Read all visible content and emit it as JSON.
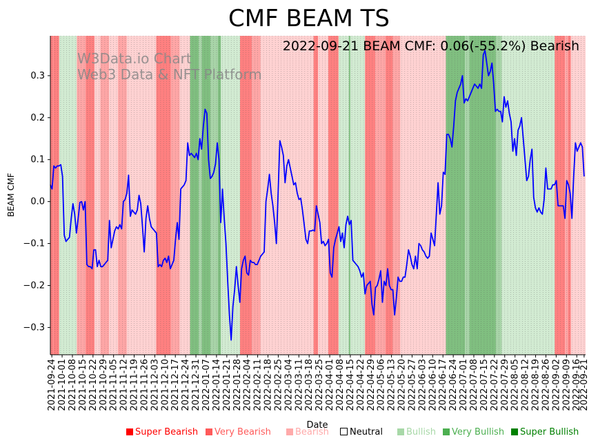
{
  "chart_data": {
    "type": "line",
    "title": "CMF BEAM TS",
    "annotation": "2022-09-21 BEAM CMF: 0.06(-55.2%) Bearish",
    "watermark": [
      "W3Data.io Chart",
      "Web3 Data & NFT Platform"
    ],
    "xlabel": "Date",
    "ylabel": "BEAM CMF",
    "ylim": [
      -0.365,
      0.395
    ],
    "yticks": [
      0.3,
      0.2,
      0.1,
      0.0,
      -0.1,
      -0.2,
      -0.3
    ],
    "ytick_labels": [
      "0.3",
      "0.2",
      "0.1",
      "0.0",
      "−0.1",
      "−0.2",
      "−0.3"
    ],
    "x_start": "2021-09-23",
    "x_end": "2022-09-22",
    "xtick_labels": [
      "2021-09-24",
      "2021-10-01",
      "2021-10-08",
      "2021-10-15",
      "2021-10-22",
      "2021-10-29",
      "2021-11-05",
      "2021-11-12",
      "2021-11-19",
      "2021-11-26",
      "2021-12-03",
      "2021-12-10",
      "2021-12-17",
      "2021-12-24",
      "2021-12-31",
      "2022-01-07",
      "2022-01-14",
      "2022-01-21",
      "2022-01-28",
      "2022-02-04",
      "2022-02-11",
      "2022-02-18",
      "2022-02-25",
      "2022-03-04",
      "2022-03-11",
      "2022-03-18",
      "2022-03-25",
      "2022-04-01",
      "2022-04-08",
      "2022-04-15",
      "2022-04-22",
      "2022-04-29",
      "2022-05-06",
      "2022-05-13",
      "2022-05-20",
      "2022-05-27",
      "2022-06-03",
      "2022-06-10",
      "2022-06-17",
      "2022-06-24",
      "2022-07-01",
      "2022-07-08",
      "2022-07-15",
      "2022-07-22",
      "2022-07-29",
      "2022-08-05",
      "2022-08-12",
      "2022-08-19",
      "2022-08-26",
      "2022-09-02",
      "2022-09-09",
      "2022-09-16",
      "2022-09-21"
    ],
    "series": [
      {
        "name": "BEAM CMF",
        "color": "#0000ff",
        "values": [
          0.04,
          0.03,
          0.085,
          0.08,
          0.085,
          0.085,
          0.088,
          0.06,
          -0.08,
          -0.095,
          -0.09,
          -0.085,
          -0.04,
          -0.005,
          -0.03,
          -0.075,
          -0.04,
          -0.002,
          0.0,
          -0.02,
          0.0,
          -0.15,
          -0.155,
          -0.155,
          -0.16,
          -0.115,
          -0.115,
          -0.155,
          -0.14,
          -0.155,
          -0.155,
          -0.15,
          -0.145,
          -0.14,
          -0.045,
          -0.11,
          -0.09,
          -0.07,
          -0.06,
          -0.065,
          -0.055,
          -0.065,
          0.0,
          0.005,
          0.02,
          0.063,
          -0.035,
          -0.02,
          -0.025,
          -0.03,
          -0.02,
          0.015,
          -0.005,
          -0.06,
          -0.12,
          -0.04,
          -0.01,
          -0.04,
          -0.06,
          -0.065,
          -0.07,
          -0.075,
          -0.155,
          -0.15,
          -0.155,
          -0.14,
          -0.135,
          -0.145,
          -0.13,
          -0.16,
          -0.15,
          -0.14,
          -0.09,
          -0.05,
          -0.09,
          0.03,
          0.035,
          0.04,
          0.05,
          0.14,
          0.11,
          0.115,
          0.11,
          0.105,
          0.115,
          0.1,
          0.15,
          0.125,
          0.18,
          0.22,
          0.21,
          0.1,
          0.055,
          0.06,
          0.07,
          0.09,
          0.14,
          0.1,
          -0.05,
          0.03,
          -0.04,
          -0.1,
          -0.19,
          -0.27,
          -0.33,
          -0.25,
          -0.21,
          -0.155,
          -0.2,
          -0.24,
          -0.16,
          -0.14,
          -0.13,
          -0.17,
          -0.175,
          -0.14,
          -0.145,
          -0.145,
          -0.15,
          -0.15,
          -0.14,
          -0.13,
          -0.125,
          -0.12,
          0.0,
          0.03,
          0.065,
          0.02,
          -0.01,
          -0.05,
          -0.1,
          0.02,
          0.145,
          0.13,
          0.11,
          0.045,
          0.085,
          0.1,
          0.08,
          0.06,
          0.04,
          0.045,
          0.02,
          0.005,
          0.008,
          -0.02,
          -0.055,
          -0.09,
          -0.1,
          -0.07,
          -0.07,
          -0.068,
          -0.07,
          -0.01,
          -0.03,
          -0.05,
          -0.1,
          -0.095,
          -0.105,
          -0.1,
          -0.09,
          -0.17,
          -0.18,
          -0.11,
          -0.09,
          -0.075,
          -0.06,
          -0.095,
          -0.075,
          -0.11,
          -0.055,
          -0.035,
          -0.055,
          -0.045,
          -0.14,
          -0.145,
          -0.15,
          -0.155,
          -0.165,
          -0.18,
          -0.17,
          -0.22,
          -0.2,
          -0.195,
          -0.19,
          -0.245,
          -0.27,
          -0.205,
          -0.2,
          -0.185,
          -0.165,
          -0.24,
          -0.19,
          -0.2,
          -0.16,
          -0.2,
          -0.21,
          -0.21,
          -0.27,
          -0.23,
          -0.18,
          -0.19,
          -0.19,
          -0.18,
          -0.18,
          -0.15,
          -0.115,
          -0.13,
          -0.15,
          -0.16,
          -0.13,
          -0.16,
          -0.1,
          -0.105,
          -0.115,
          -0.12,
          -0.13,
          -0.135,
          -0.13,
          -0.075,
          -0.09,
          -0.105,
          -0.03,
          0.045,
          -0.03,
          -0.01,
          0.07,
          0.065,
          0.16,
          0.16,
          0.15,
          0.13,
          0.18,
          0.24,
          0.26,
          0.27,
          0.28,
          0.3,
          0.235,
          0.245,
          0.24,
          0.25,
          0.26,
          0.27,
          0.28,
          0.275,
          0.27,
          0.28,
          0.27,
          0.35,
          0.36,
          0.33,
          0.3,
          0.31,
          0.33,
          0.28,
          0.215,
          0.22,
          0.215,
          0.215,
          0.19,
          0.25,
          0.225,
          0.24,
          0.21,
          0.19,
          0.12,
          0.15,
          0.11,
          0.17,
          0.18,
          0.2,
          0.15,
          0.1,
          0.05,
          0.06,
          0.1,
          0.125,
          0.01,
          -0.015,
          -0.025,
          -0.015,
          -0.025,
          -0.03,
          0.005,
          0.08,
          0.03,
          0.03,
          0.03,
          0.04,
          0.04,
          0.05,
          -0.01,
          -0.01,
          -0.01,
          -0.01,
          -0.04,
          0.05,
          0.04,
          0.02,
          -0.04,
          0.06,
          0.14,
          0.12,
          0.13,
          0.14,
          0.13,
          0.06
        ]
      }
    ],
    "regimes_colors": {
      "super_bearish": "#ff8080",
      "very_bearish": "#ffa6a6",
      "bearish": "#ffd2d2",
      "neutral": "#ffffff",
      "bullish": "#d2ebd2",
      "very_bullish": "#a8d4a8",
      "super_bullish": "#80bf80"
    },
    "regimes": [
      {
        "start": "2021-09-23",
        "end": "2021-09-25",
        "level": "super_bearish"
      },
      {
        "start": "2021-09-25",
        "end": "2021-09-29",
        "level": "super_bearish"
      },
      {
        "start": "2021-09-29",
        "end": "2021-10-11",
        "level": "bullish"
      },
      {
        "start": "2021-10-11",
        "end": "2021-10-17",
        "level": "very_bearish"
      },
      {
        "start": "2021-10-17",
        "end": "2021-10-23",
        "level": "super_bearish"
      },
      {
        "start": "2021-10-23",
        "end": "2021-10-27",
        "level": "bearish"
      },
      {
        "start": "2021-10-27",
        "end": "2021-11-02",
        "level": "very_bearish"
      },
      {
        "start": "2021-11-02",
        "end": "2021-11-08",
        "level": "bearish"
      },
      {
        "start": "2021-11-08",
        "end": "2021-11-14",
        "level": "very_bearish"
      },
      {
        "start": "2021-11-14",
        "end": "2021-12-04",
        "level": "bearish"
      },
      {
        "start": "2021-12-04",
        "end": "2021-12-14",
        "level": "super_bearish"
      },
      {
        "start": "2021-12-14",
        "end": "2021-12-20",
        "level": "very_bearish"
      },
      {
        "start": "2021-12-20",
        "end": "2021-12-27",
        "level": "bearish"
      },
      {
        "start": "2021-12-27",
        "end": "2022-01-02",
        "level": "super_bullish"
      },
      {
        "start": "2022-01-02",
        "end": "2022-01-04",
        "level": "very_bullish"
      },
      {
        "start": "2022-01-04",
        "end": "2022-01-10",
        "level": "super_bullish"
      },
      {
        "start": "2022-01-10",
        "end": "2022-01-15",
        "level": "very_bullish"
      },
      {
        "start": "2022-01-15",
        "end": "2022-01-17",
        "level": "super_bullish"
      },
      {
        "start": "2022-01-17",
        "end": "2022-01-30",
        "level": "bullish"
      },
      {
        "start": "2022-01-30",
        "end": "2022-02-07",
        "level": "super_bearish"
      },
      {
        "start": "2022-02-07",
        "end": "2022-02-13",
        "level": "very_bearish"
      },
      {
        "start": "2022-02-13",
        "end": "2022-03-21",
        "level": "bearish"
      },
      {
        "start": "2022-03-21",
        "end": "2022-03-24",
        "level": "super_bearish"
      },
      {
        "start": "2022-03-24",
        "end": "2022-03-31",
        "level": "bearish"
      },
      {
        "start": "2022-03-31",
        "end": "2022-04-07",
        "level": "super_bearish"
      },
      {
        "start": "2022-04-07",
        "end": "2022-04-14",
        "level": "bullish"
      },
      {
        "start": "2022-04-14",
        "end": "2022-04-15",
        "level": "super_bullish"
      },
      {
        "start": "2022-04-15",
        "end": "2022-04-25",
        "level": "bullish"
      },
      {
        "start": "2022-04-25",
        "end": "2022-05-02",
        "level": "super_bearish"
      },
      {
        "start": "2022-05-02",
        "end": "2022-05-09",
        "level": "very_bearish"
      },
      {
        "start": "2022-05-09",
        "end": "2022-05-14",
        "level": "super_bearish"
      },
      {
        "start": "2022-05-14",
        "end": "2022-05-19",
        "level": "very_bearish"
      },
      {
        "start": "2022-05-19",
        "end": "2022-06-19",
        "level": "bearish"
      },
      {
        "start": "2022-06-19",
        "end": "2022-07-02",
        "level": "super_bullish"
      },
      {
        "start": "2022-07-02",
        "end": "2022-07-05",
        "level": "very_bullish"
      },
      {
        "start": "2022-07-05",
        "end": "2022-07-23",
        "level": "super_bullish"
      },
      {
        "start": "2022-07-23",
        "end": "2022-07-27",
        "level": "very_bullish"
      },
      {
        "start": "2022-07-27",
        "end": "2022-09-01",
        "level": "bullish"
      },
      {
        "start": "2022-09-01",
        "end": "2022-09-08",
        "level": "super_bearish"
      },
      {
        "start": "2022-09-08",
        "end": "2022-09-10",
        "level": "very_bearish"
      },
      {
        "start": "2022-09-10",
        "end": "2022-09-12",
        "level": "super_bearish"
      },
      {
        "start": "2022-09-12",
        "end": "2022-09-17",
        "level": "bearish"
      },
      {
        "start": "2022-09-17",
        "end": "2022-09-22",
        "level": "bearish"
      }
    ],
    "legend": [
      {
        "label": "Super Bearish",
        "color": "#ff0000"
      },
      {
        "label": "Very Bearish",
        "color": "#ff5a5a"
      },
      {
        "label": "Bearish",
        "color": "#ffaaaa"
      },
      {
        "label": "Neutral",
        "color": "#ffffff"
      },
      {
        "label": "Bullish",
        "color": "#a8d8a8"
      },
      {
        "label": "Very Bullish",
        "color": "#4caf50"
      },
      {
        "label": "Super Bullish",
        "color": "#008000"
      }
    ]
  }
}
